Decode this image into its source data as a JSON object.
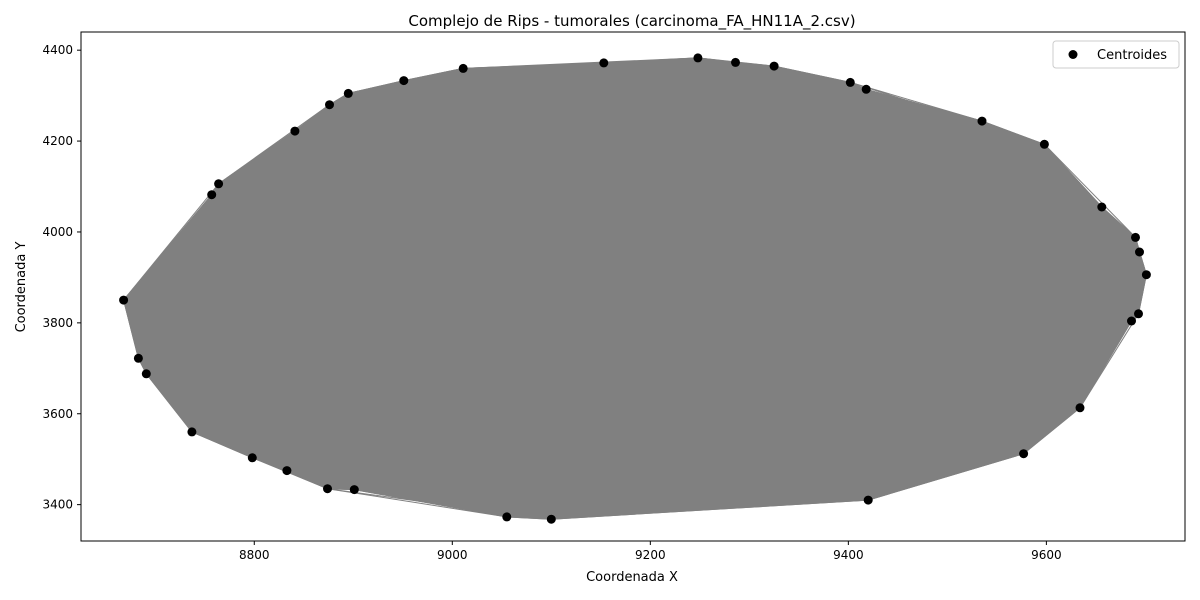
{
  "chart_data": {
    "type": "scatter",
    "title": "Complejo de Rips - tumorales (carcinoma_FA_HN11A_2.csv)",
    "xlabel": "Coordenada X",
    "ylabel": "Coordenada Y",
    "xlim": [
      8625,
      9740
    ],
    "ylim": [
      3320,
      4440
    ],
    "xticks": [
      8800,
      9000,
      9200,
      9400,
      9600
    ],
    "xtick_labels": [
      "8800",
      "9000",
      "9200",
      "9400",
      "9600"
    ],
    "yticks": [
      3400,
      3600,
      3800,
      4000,
      4200,
      4400
    ],
    "ytick_labels": [
      "3400",
      "3600",
      "3800",
      "4000",
      "4200",
      "4400"
    ],
    "grid": false,
    "legend": {
      "position": "top-right",
      "entries": [
        "Centroides"
      ]
    },
    "edge_color": "#808080",
    "point_color": "#000000",
    "series": [
      {
        "name": "Centroides",
        "points": [
          [
            8668,
            3850
          ],
          [
            8683,
            3722
          ],
          [
            8691,
            3688
          ],
          [
            8737,
            3560
          ],
          [
            8798,
            3503
          ],
          [
            8833,
            3475
          ],
          [
            8874,
            3435
          ],
          [
            8901,
            3433
          ],
          [
            9055,
            3373
          ],
          [
            9100,
            3368
          ],
          [
            9420,
            3410
          ],
          [
            9577,
            3512
          ],
          [
            9634,
            3613
          ],
          [
            9686,
            3804
          ],
          [
            9693,
            3820
          ],
          [
            9701,
            3906
          ],
          [
            9694,
            3956
          ],
          [
            9690,
            3988
          ],
          [
            9656,
            4055
          ],
          [
            9598,
            4193
          ],
          [
            9535,
            4244
          ],
          [
            9418,
            4314
          ],
          [
            9402,
            4329
          ],
          [
            9325,
            4365
          ],
          [
            9286,
            4373
          ],
          [
            9248,
            4383
          ],
          [
            9153,
            4372
          ],
          [
            9011,
            4360
          ],
          [
            8951,
            4333
          ],
          [
            8895,
            4305
          ],
          [
            8876,
            4280
          ],
          [
            8841,
            4222
          ],
          [
            8764,
            4106
          ],
          [
            8757,
            4082
          ]
        ]
      }
    ]
  }
}
